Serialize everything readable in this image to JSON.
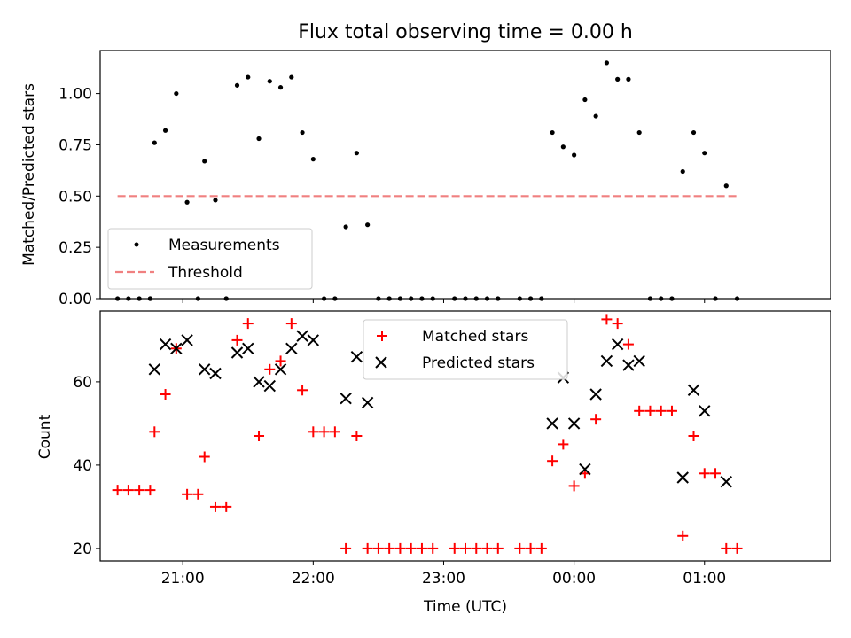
{
  "chart_data": [
    {
      "type": "scatter",
      "title": "Flux total observing time = 0.00 h",
      "xlabel": "",
      "ylabel": "Matched/Predicted stars",
      "ylim": [
        0,
        1.21
      ],
      "xlim": [
        "20:22",
        "01:58"
      ],
      "y_ticks": [
        "0.00",
        "0.25",
        "0.50",
        "0.75",
        "1.00"
      ],
      "grid": false,
      "legend": {
        "placement": "lower-left",
        "entries": [
          "Measurements",
          "Threshold"
        ]
      },
      "series": [
        {
          "name": "Measurements",
          "color": "#000000",
          "marker": "dot",
          "points": [
            [
              "20:30",
              0
            ],
            [
              "20:35",
              0
            ],
            [
              "20:40",
              0
            ],
            [
              "20:45",
              0
            ],
            [
              "20:45",
              0
            ],
            [
              "20:47",
              0.76
            ],
            [
              "20:52",
              0.82
            ],
            [
              "20:57",
              1.0
            ],
            [
              "21:02",
              0.47
            ],
            [
              "21:07",
              0
            ],
            [
              "21:10",
              0.67
            ],
            [
              "21:15",
              0.48
            ],
            [
              "21:20",
              0
            ],
            [
              "21:25",
              1.04
            ],
            [
              "21:30",
              1.08
            ],
            [
              "21:35",
              0.78
            ],
            [
              "21:40",
              1.06
            ],
            [
              "21:45",
              1.03
            ],
            [
              "21:50",
              1.08
            ],
            [
              "21:55",
              0.81
            ],
            [
              "22:00",
              0.68
            ],
            [
              "22:05",
              0
            ],
            [
              "22:10",
              0
            ],
            [
              "22:15",
              0.35
            ],
            [
              "22:20",
              0.71
            ],
            [
              "22:25",
              0.36
            ],
            [
              "22:30",
              0
            ],
            [
              "22:35",
              0
            ],
            [
              "22:40",
              0
            ],
            [
              "22:45",
              0
            ],
            [
              "22:50",
              0
            ],
            [
              "22:55",
              0
            ],
            [
              "23:05",
              0
            ],
            [
              "23:10",
              0
            ],
            [
              "23:15",
              0
            ],
            [
              "23:20",
              0
            ],
            [
              "23:25",
              0
            ],
            [
              "23:35",
              0
            ],
            [
              "23:40",
              0
            ],
            [
              "23:45",
              0
            ],
            [
              "23:50",
              0.81
            ],
            [
              "23:55",
              0.74
            ],
            [
              "00:00",
              0.7
            ],
            [
              "00:05",
              0.97
            ],
            [
              "00:10",
              0.89
            ],
            [
              "00:15",
              1.15
            ],
            [
              "00:20",
              1.07
            ],
            [
              "00:25",
              1.07
            ],
            [
              "00:30",
              0.81
            ],
            [
              "00:35",
              0
            ],
            [
              "00:40",
              0
            ],
            [
              "00:45",
              0
            ],
            [
              "00:50",
              0.62
            ],
            [
              "00:55",
              0.81
            ],
            [
              "01:00",
              0.71
            ],
            [
              "01:05",
              0
            ],
            [
              "01:10",
              0.55
            ],
            [
              "01:15",
              0
            ]
          ]
        },
        {
          "name": "Threshold",
          "color": "#f08080",
          "style": "dashed",
          "points": [
            [
              "20:30",
              0.5
            ],
            [
              "01:15",
              0.5
            ]
          ]
        }
      ]
    },
    {
      "type": "scatter",
      "xlabel": "Time (UTC)",
      "ylabel": "Count",
      "ylim": [
        17,
        77
      ],
      "xlim": [
        "20:22",
        "01:58"
      ],
      "x_ticks": [
        "21:00",
        "22:00",
        "23:00",
        "00:00",
        "01:00"
      ],
      "y_ticks": [
        "20",
        "40",
        "60"
      ],
      "grid": false,
      "legend": {
        "placement": "top-center",
        "entries": [
          "Matched stars",
          "Predicted stars"
        ]
      },
      "series": [
        {
          "name": "Matched stars",
          "color": "#ff0000",
          "marker": "plus",
          "points": [
            [
              "20:30",
              34
            ],
            [
              "20:35",
              34
            ],
            [
              "20:40",
              34
            ],
            [
              "20:45",
              34
            ],
            [
              "20:47",
              48
            ],
            [
              "20:52",
              57
            ],
            [
              "20:57",
              68
            ],
            [
              "21:02",
              33
            ],
            [
              "21:07",
              33
            ],
            [
              "21:10",
              42
            ],
            [
              "21:15",
              30
            ],
            [
              "21:20",
              30
            ],
            [
              "21:25",
              70
            ],
            [
              "21:30",
              74
            ],
            [
              "21:35",
              47
            ],
            [
              "21:40",
              63
            ],
            [
              "21:45",
              65
            ],
            [
              "21:50",
              74
            ],
            [
              "21:55",
              58
            ],
            [
              "22:00",
              48
            ],
            [
              "22:05",
              48
            ],
            [
              "22:10",
              48
            ],
            [
              "22:15",
              20
            ],
            [
              "22:20",
              47
            ],
            [
              "22:25",
              20
            ],
            [
              "22:30",
              20
            ],
            [
              "22:35",
              20
            ],
            [
              "22:40",
              20
            ],
            [
              "22:45",
              20
            ],
            [
              "22:50",
              20
            ],
            [
              "22:55",
              20
            ],
            [
              "23:05",
              20
            ],
            [
              "23:10",
              20
            ],
            [
              "23:15",
              20
            ],
            [
              "23:20",
              20
            ],
            [
              "23:25",
              20
            ],
            [
              "23:35",
              20
            ],
            [
              "23:40",
              20
            ],
            [
              "23:45",
              20
            ],
            [
              "23:50",
              41
            ],
            [
              "23:55",
              45
            ],
            [
              "00:00",
              35
            ],
            [
              "00:05",
              38
            ],
            [
              "00:10",
              51
            ],
            [
              "00:15",
              75
            ],
            [
              "00:20",
              74
            ],
            [
              "00:25",
              69
            ],
            [
              "00:30",
              53
            ],
            [
              "00:35",
              53
            ],
            [
              "00:40",
              53
            ],
            [
              "00:45",
              53
            ],
            [
              "00:50",
              23
            ],
            [
              "00:55",
              47
            ],
            [
              "01:00",
              38
            ],
            [
              "01:05",
              38
            ],
            [
              "01:10",
              20
            ],
            [
              "01:15",
              20
            ]
          ]
        },
        {
          "name": "Predicted stars",
          "color": "#000000",
          "marker": "x",
          "points": [
            [
              "20:47",
              63
            ],
            [
              "20:52",
              69
            ],
            [
              "20:57",
              68
            ],
            [
              "21:02",
              70
            ],
            [
              "21:10",
              63
            ],
            [
              "21:15",
              62
            ],
            [
              "21:25",
              67
            ],
            [
              "21:30",
              68
            ],
            [
              "21:35",
              60
            ],
            [
              "21:40",
              59
            ],
            [
              "21:45",
              63
            ],
            [
              "21:50",
              68
            ],
            [
              "21:55",
              71
            ],
            [
              "22:00",
              70
            ],
            [
              "22:15",
              56
            ],
            [
              "22:20",
              66
            ],
            [
              "22:25",
              55
            ],
            [
              "23:50",
              50
            ],
            [
              "23:55",
              61
            ],
            [
              "00:00",
              50
            ],
            [
              "00:05",
              39
            ],
            [
              "00:10",
              57
            ],
            [
              "00:15",
              65
            ],
            [
              "00:20",
              69
            ],
            [
              "00:25",
              64
            ],
            [
              "00:30",
              65
            ],
            [
              "00:50",
              37
            ],
            [
              "00:55",
              58
            ],
            [
              "01:00",
              53
            ],
            [
              "01:10",
              36
            ]
          ]
        }
      ]
    }
  ]
}
